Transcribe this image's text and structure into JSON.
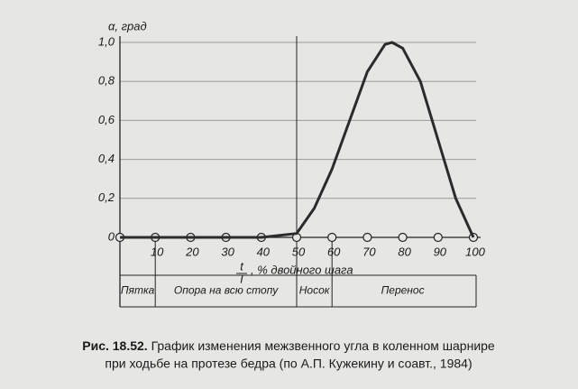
{
  "chart_data": {
    "type": "line",
    "y_label": "α, град",
    "x_label": {
      "numerator": "t",
      "denominator": "T",
      "text": ", % двойного шага"
    },
    "x": [
      0,
      10,
      20,
      30,
      40,
      50,
      55,
      60,
      65,
      70,
      75,
      77,
      80,
      85,
      90,
      95,
      100
    ],
    "series": [
      {
        "color": "#2b2b2b",
        "values": [
          0,
          0,
          0,
          0,
          0,
          0.02,
          0.15,
          0.35,
          0.6,
          0.85,
          0.99,
          1.0,
          0.97,
          0.8,
          0.5,
          0.2,
          0
        ]
      }
    ],
    "xlim": [
      0,
      100
    ],
    "xticks": [
      10,
      20,
      30,
      40,
      50,
      60,
      70,
      80,
      90,
      100
    ],
    "ylim": [
      0,
      1.0
    ],
    "yticks": [
      0,
      {
        "value": 0.2,
        "label": "0,2"
      },
      {
        "value": 0.4,
        "label": "0,4"
      },
      {
        "value": 0.6,
        "label": "0,6"
      },
      {
        "value": 0.8,
        "label": "0,8"
      },
      {
        "value": 1.0,
        "label": "1,0"
      }
    ],
    "grid": true,
    "phases": [
      {
        "name": "Пятка",
        "range": [
          0,
          10
        ]
      },
      {
        "name": "Опора на всю стопу",
        "range": [
          10,
          50
        ]
      },
      {
        "name": "Носок",
        "range": [
          50,
          60
        ]
      },
      {
        "name": "Перенос",
        "range": [
          60,
          100
        ]
      }
    ],
    "caption": {
      "label": "Рис. 18.52.",
      "text": "График изменения межзвенного угла в коленном шарнире",
      "text2": "при ходьбе на протезе бедра (по А.П. Кужекину и соавт., 1984)"
    }
  }
}
